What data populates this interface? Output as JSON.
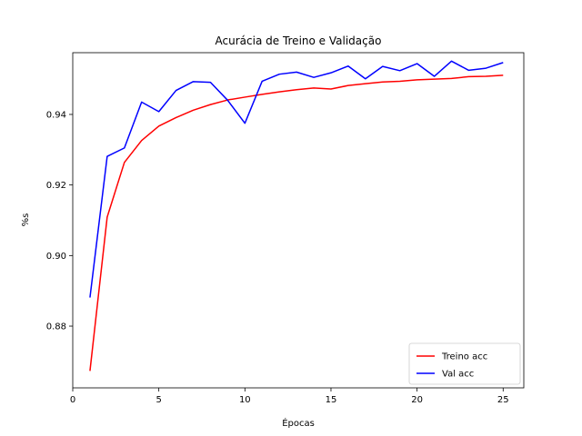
{
  "chart_data": {
    "type": "line",
    "title": "Acurácia de Treino e Validação",
    "xlabel": "Épocas",
    "ylabel": "%s",
    "x": [
      1,
      2,
      3,
      4,
      5,
      6,
      7,
      8,
      9,
      10,
      11,
      12,
      13,
      14,
      15,
      16,
      17,
      18,
      19,
      20,
      21,
      22,
      23,
      24,
      25
    ],
    "xlim": [
      0,
      26.2
    ],
    "ylim": [
      0.8625,
      0.9575
    ],
    "xticks": [
      0,
      5,
      10,
      15,
      20,
      25
    ],
    "yticks": [
      0.88,
      0.9,
      0.92,
      0.94
    ],
    "xtick_labels": [
      "0",
      "5",
      "10",
      "15",
      "20",
      "25"
    ],
    "ytick_labels": [
      "0.88",
      "0.90",
      "0.92",
      "0.94"
    ],
    "grid": false,
    "legend_position": "bottom-right",
    "series": [
      {
        "name": "Treino acc",
        "color": "#ff0000",
        "values": [
          0.8673,
          0.9109,
          0.9264,
          0.9326,
          0.9367,
          0.9391,
          0.9412,
          0.9428,
          0.9441,
          0.9449,
          0.9457,
          0.9464,
          0.947,
          0.9475,
          0.9472,
          0.9482,
          0.9487,
          0.9492,
          0.9494,
          0.9498,
          0.95,
          0.9502,
          0.9507,
          0.9508,
          0.9511
        ]
      },
      {
        "name": "Val acc",
        "color": "#0000ff",
        "values": [
          0.8881,
          0.9281,
          0.9305,
          0.9435,
          0.9408,
          0.9468,
          0.9493,
          0.9491,
          0.944,
          0.9375,
          0.9494,
          0.9514,
          0.952,
          0.9505,
          0.9518,
          0.9537,
          0.9501,
          0.9536,
          0.9524,
          0.9544,
          0.9508,
          0.9551,
          0.9525,
          0.9531,
          0.9547
        ]
      }
    ]
  }
}
